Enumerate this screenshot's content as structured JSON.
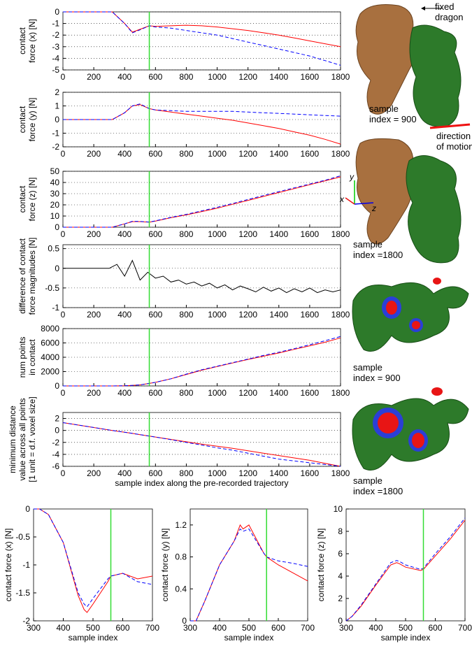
{
  "chart_data": [
    {
      "type": "line",
      "ylabel": [
        "contact",
        "force (x) [N]"
      ],
      "grid": true,
      "marker_x": 560,
      "marker_color": "#33dd33",
      "x": [
        0,
        320,
        400,
        450,
        500,
        560,
        600,
        700,
        800,
        900,
        1000,
        1100,
        1200,
        1300,
        1400,
        1500,
        1600,
        1700,
        1800
      ],
      "xlim": [
        0,
        1800
      ],
      "xticks": [
        0,
        200,
        400,
        600,
        800,
        1000,
        1200,
        1400,
        1600,
        1800
      ],
      "ylim": [
        -5,
        0
      ],
      "yticks": [
        -5,
        -4,
        -3,
        -2,
        -1,
        0
      ],
      "series": [
        {
          "color": "#ff0000",
          "dashed": false,
          "values": [
            0,
            0,
            -1.0,
            -1.75,
            -1.5,
            -1.2,
            -1.25,
            -1.2,
            -1.15,
            -1.2,
            -1.3,
            -1.45,
            -1.6,
            -1.8,
            -2.0,
            -2.25,
            -2.5,
            -2.75,
            -3.0
          ]
        },
        {
          "color": "#0000ff",
          "dashed": true,
          "values": [
            0,
            0,
            -1.0,
            -1.8,
            -1.55,
            -1.2,
            -1.3,
            -1.4,
            -1.6,
            -1.8,
            -2.0,
            -2.3,
            -2.6,
            -2.9,
            -3.2,
            -3.5,
            -3.8,
            -4.2,
            -4.6
          ]
        }
      ]
    },
    {
      "type": "line",
      "ylabel": [
        "contact",
        "force (y) [N]"
      ],
      "grid": true,
      "marker_x": 560,
      "marker_color": "#33dd33",
      "x": [
        0,
        320,
        400,
        450,
        500,
        560,
        600,
        700,
        800,
        900,
        1000,
        1100,
        1200,
        1300,
        1400,
        1500,
        1600,
        1700,
        1800
      ],
      "xlim": [
        0,
        1800
      ],
      "xticks": [
        0,
        200,
        400,
        600,
        800,
        1000,
        1200,
        1400,
        1600,
        1800
      ],
      "ylim": [
        -2,
        2
      ],
      "yticks": [
        -2,
        -1,
        0,
        1,
        2
      ],
      "series": [
        {
          "color": "#ff0000",
          "dashed": false,
          "values": [
            0,
            0,
            0.5,
            1.0,
            1.1,
            0.8,
            0.7,
            0.55,
            0.4,
            0.25,
            0.1,
            -0.05,
            -0.25,
            -0.45,
            -0.65,
            -0.9,
            -1.15,
            -1.45,
            -1.8
          ]
        },
        {
          "color": "#0000ff",
          "dashed": true,
          "values": [
            0,
            0,
            0.5,
            1.0,
            1.15,
            0.8,
            0.7,
            0.65,
            0.6,
            0.6,
            0.6,
            0.6,
            0.55,
            0.5,
            0.45,
            0.4,
            0.35,
            0.3,
            0.25
          ]
        }
      ]
    },
    {
      "type": "line",
      "ylabel": [
        "contact",
        "force (z) [N]"
      ],
      "grid": true,
      "marker_x": 560,
      "marker_color": "#33dd33",
      "x": [
        0,
        320,
        400,
        450,
        500,
        560,
        600,
        700,
        800,
        900,
        1000,
        1100,
        1200,
        1300,
        1400,
        1500,
        1600,
        1700,
        1800
      ],
      "xlim": [
        0,
        1800
      ],
      "xticks": [
        0,
        200,
        400,
        600,
        800,
        1000,
        1200,
        1400,
        1600,
        1800
      ],
      "ylim": [
        0,
        50
      ],
      "yticks": [
        0,
        10,
        20,
        30,
        40,
        50
      ],
      "series": [
        {
          "color": "#ff0000",
          "dashed": false,
          "values": [
            0,
            0,
            3,
            5,
            5,
            4.5,
            5.5,
            8.5,
            11,
            14,
            17,
            20.5,
            24,
            27.5,
            31,
            34.5,
            38,
            41.5,
            45
          ]
        },
        {
          "color": "#0000ff",
          "dashed": true,
          "values": [
            0,
            0,
            3,
            5.3,
            5.2,
            4.6,
            5.7,
            8.8,
            11.5,
            14.6,
            17.8,
            21.2,
            24.8,
            28.3,
            31.8,
            35.2,
            38.6,
            42,
            46
          ]
        }
      ]
    },
    {
      "type": "line",
      "ylabel": [
        "difference of contact",
        "force magnitudes [N]"
      ],
      "grid": true,
      "marker_x": 560,
      "marker_color": "#33dd33",
      "x": [
        0,
        50,
        100,
        150,
        200,
        250,
        300,
        350,
        400,
        450,
        500,
        550,
        600,
        650,
        700,
        750,
        800,
        850,
        900,
        950,
        1000,
        1050,
        1100,
        1150,
        1200,
        1250,
        1300,
        1350,
        1400,
        1450,
        1500,
        1550,
        1600,
        1650,
        1700,
        1750,
        1800
      ],
      "xlim": [
        0,
        1800
      ],
      "xticks": [
        0,
        200,
        400,
        600,
        800,
        1000,
        1200,
        1400,
        1600,
        1800
      ],
      "ylim": [
        -1,
        0.6
      ],
      "yticks": [
        -1,
        -0.5,
        0,
        0.5
      ],
      "series": [
        {
          "color": "#000000",
          "dashed": false,
          "values": [
            0,
            0,
            0,
            0,
            0,
            0,
            0,
            0.1,
            -0.2,
            0.2,
            -0.3,
            -0.1,
            -0.25,
            -0.2,
            -0.35,
            -0.3,
            -0.4,
            -0.35,
            -0.45,
            -0.38,
            -0.5,
            -0.42,
            -0.55,
            -0.45,
            -0.52,
            -0.6,
            -0.48,
            -0.58,
            -0.5,
            -0.62,
            -0.52,
            -0.6,
            -0.5,
            -0.62,
            -0.55,
            -0.6,
            -0.55
          ]
        }
      ]
    },
    {
      "type": "line",
      "ylabel": [
        "num points",
        "in contact"
      ],
      "grid": true,
      "marker_x": 560,
      "marker_color": "#33dd33",
      "x": [
        0,
        320,
        400,
        450,
        500,
        560,
        600,
        700,
        800,
        900,
        1000,
        1100,
        1200,
        1300,
        1400,
        1500,
        1600,
        1700,
        1800
      ],
      "xlim": [
        0,
        1800
      ],
      "xticks": [
        0,
        200,
        400,
        600,
        800,
        1000,
        1200,
        1400,
        1600,
        1800
      ],
      "ylim": [
        0,
        8000
      ],
      "yticks": [
        0,
        2000,
        4000,
        6000,
        8000
      ],
      "series": [
        {
          "color": "#ff0000",
          "dashed": false,
          "values": [
            0,
            0,
            30,
            80,
            150,
            350,
            500,
            1000,
            1600,
            2200,
            2700,
            3200,
            3700,
            4150,
            4600,
            5100,
            5600,
            6100,
            6700
          ]
        },
        {
          "color": "#0000ff",
          "dashed": true,
          "values": [
            0,
            0,
            30,
            80,
            150,
            350,
            500,
            1000,
            1650,
            2250,
            2750,
            3250,
            3750,
            4250,
            4700,
            5200,
            5750,
            6300,
            6900
          ]
        }
      ]
    },
    {
      "type": "line",
      "ylabel": [
        "minimum distance",
        "value across all points",
        "[1 unit = d.f. voxel size]"
      ],
      "xlabel": "sample index along the pre-recorded trajectory",
      "grid": true,
      "marker_x": 560,
      "marker_color": "#33dd33",
      "x": [
        0,
        320,
        400,
        450,
        500,
        560,
        600,
        700,
        800,
        900,
        1000,
        1100,
        1200,
        1300,
        1400,
        1500,
        1600,
        1700,
        1800
      ],
      "xlim": [
        0,
        1800
      ],
      "xticks": [
        0,
        200,
        400,
        600,
        800,
        1000,
        1200,
        1400,
        1600,
        1800
      ],
      "ylim": [
        -6,
        3
      ],
      "yticks": [
        -6,
        -4,
        -2,
        0,
        2
      ],
      "series": [
        {
          "color": "#ff0000",
          "dashed": false,
          "values": [
            1.3,
            0.0,
            -0.3,
            -0.5,
            -0.7,
            -0.95,
            -1.1,
            -1.5,
            -1.9,
            -2.3,
            -2.65,
            -3.0,
            -3.4,
            -3.8,
            -4.2,
            -4.6,
            -5.0,
            -5.5,
            -6.0
          ]
        },
        {
          "color": "#0000ff",
          "dashed": true,
          "values": [
            1.3,
            0.0,
            -0.3,
            -0.5,
            -0.7,
            -0.95,
            -1.1,
            -1.55,
            -2.0,
            -2.45,
            -2.9,
            -3.3,
            -3.8,
            -4.3,
            -4.8,
            -5.1,
            -5.4,
            -5.7,
            -6.0
          ]
        }
      ]
    },
    {
      "type": "line",
      "ylabel": [
        "contact  force (x) [N]"
      ],
      "xlabel": "sample index",
      "grid": false,
      "marker_x": 560,
      "marker_color": "#33dd33",
      "x": [
        300,
        320,
        350,
        400,
        450,
        470,
        480,
        500,
        550,
        560,
        600,
        650,
        700
      ],
      "xlim": [
        300,
        700
      ],
      "xticks": [
        300,
        400,
        500,
        600,
        700
      ],
      "ylim": [
        -2,
        0
      ],
      "yticks": [
        -2,
        -1.5,
        -1,
        -0.5,
        0
      ],
      "series": [
        {
          "color": "#ff0000",
          "dashed": false,
          "values": [
            0,
            0,
            -0.1,
            -0.6,
            -1.55,
            -1.8,
            -1.85,
            -1.7,
            -1.3,
            -1.2,
            -1.15,
            -1.25,
            -1.2
          ]
        },
        {
          "color": "#0000ff",
          "dashed": true,
          "values": [
            0,
            0,
            -0.1,
            -0.6,
            -1.5,
            -1.7,
            -1.75,
            -1.6,
            -1.25,
            -1.2,
            -1.15,
            -1.3,
            -1.35
          ]
        }
      ]
    },
    {
      "type": "line",
      "ylabel": [
        "contact  force (y) [N]"
      ],
      "xlabel": "sample index",
      "grid": false,
      "marker_x": 560,
      "marker_color": "#33dd33",
      "x": [
        300,
        320,
        350,
        400,
        450,
        470,
        480,
        500,
        550,
        560,
        600,
        650,
        700
      ],
      "xlim": [
        300,
        700
      ],
      "xticks": [
        300,
        400,
        500,
        600,
        700
      ],
      "ylim": [
        0,
        1.4
      ],
      "yticks": [
        0,
        0.4,
        0.8,
        1.2
      ],
      "series": [
        {
          "color": "#ff0000",
          "dashed": false,
          "values": [
            0,
            0,
            0.25,
            0.7,
            1.0,
            1.2,
            1.15,
            1.2,
            0.85,
            0.8,
            0.7,
            0.6,
            0.5
          ]
        },
        {
          "color": "#0000ff",
          "dashed": true,
          "values": [
            0,
            0,
            0.25,
            0.7,
            1.0,
            1.15,
            1.12,
            1.15,
            0.85,
            0.8,
            0.75,
            0.72,
            0.68
          ]
        }
      ]
    },
    {
      "type": "line",
      "ylabel": [
        "contact  force (z) [N]"
      ],
      "xlabel": "sample index",
      "grid": false,
      "marker_x": 560,
      "marker_color": "#33dd33",
      "x": [
        300,
        320,
        350,
        400,
        450,
        470,
        480,
        500,
        550,
        560,
        600,
        650,
        700
      ],
      "xlim": [
        300,
        700
      ],
      "xticks": [
        300,
        400,
        500,
        600,
        700
      ],
      "ylim": [
        0,
        10
      ],
      "yticks": [
        0,
        2,
        4,
        6,
        8,
        10
      ],
      "series": [
        {
          "color": "#ff0000",
          "dashed": false,
          "values": [
            0,
            0.4,
            1.3,
            3.2,
            5,
            5.2,
            5.1,
            4.8,
            4.5,
            4.6,
            5.8,
            7.3,
            9.0
          ]
        },
        {
          "color": "#0000ff",
          "dashed": true,
          "values": [
            0,
            0.4,
            1.4,
            3.3,
            5.2,
            5.4,
            5.3,
            5.0,
            4.6,
            4.7,
            6.0,
            7.5,
            9.2
          ]
        }
      ]
    }
  ],
  "images": {
    "top": {
      "fixed_label": [
        "fixed",
        "dragon"
      ],
      "index_label": [
        "sample",
        "index = 900"
      ],
      "motion_label": [
        "direction",
        "of motion"
      ]
    },
    "second": {
      "axes": [
        "y",
        "x",
        "z"
      ],
      "index_label": [
        "sample",
        "index =1800"
      ]
    },
    "third": {
      "index_label": [
        "sample",
        "index = 900"
      ]
    },
    "fourth": {
      "index_label": [
        "sample",
        "index =1800"
      ]
    }
  }
}
